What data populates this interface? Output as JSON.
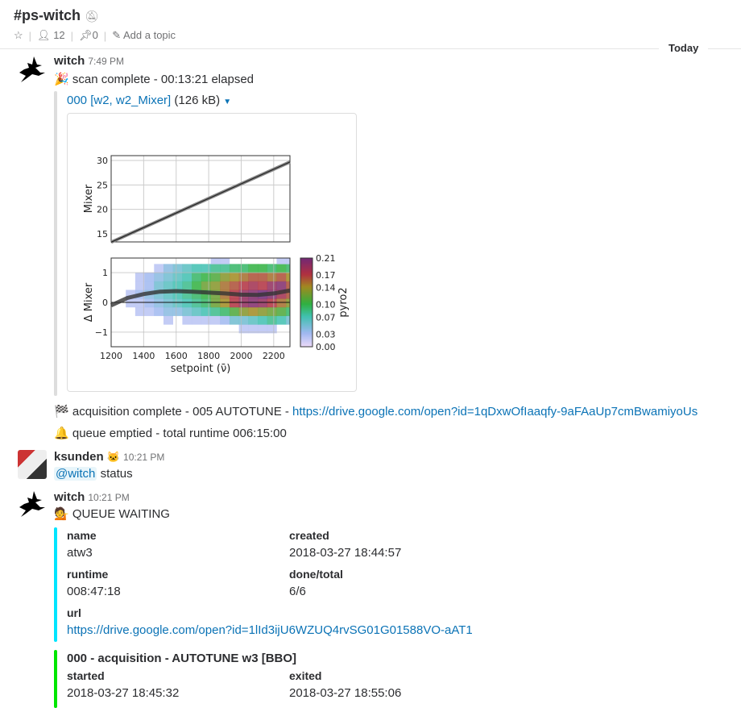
{
  "header": {
    "channel": "#ps-witch",
    "members": "12",
    "pins": "0",
    "topic": "Add a topic",
    "icons": [
      "bell-muted-icon",
      "star-icon",
      "person-icon",
      "pin-icon",
      "pencil-icon"
    ]
  },
  "divider": {
    "label": "Today"
  },
  "messages": [
    {
      "author": "witch",
      "time": "7:49 PM",
      "text": "scan complete - 00:13:21 elapsed",
      "emoji": "🎉",
      "file": {
        "name": "000 [w2, w2_Mixer]",
        "size": "(126 kB)"
      }
    },
    {
      "emoji": "🏁",
      "text": "acquisition complete - 005 AUTOTUNE - ",
      "link": "https://drive.google.com/open?id=1qDxwOfIaaqfy-9aFAaUp7cmBwamiyoUs"
    },
    {
      "emoji": "🔔",
      "text": "queue emptied - total runtime 006:15:00"
    },
    {
      "author": "ksunden",
      "time": "10:21 PM",
      "mention": "@witch",
      "text": "status"
    },
    {
      "author": "witch",
      "time": "10:21 PM",
      "emoji": "💁",
      "text": "QUEUE WAITING",
      "attachments": [
        {
          "color": "#00e5ff",
          "fields": [
            {
              "label": "name",
              "value": "atw3"
            },
            {
              "label": "created",
              "value": "2018-03-27 18:44:57"
            },
            {
              "label": "runtime",
              "value": "008:47:18"
            },
            {
              "label": "done/total",
              "value": "6/6"
            },
            {
              "label": "url",
              "value": "https://drive.google.com/open?id=1lId3ijU6WZUQ4rvSG01G01588VO-aAT1"
            }
          ]
        },
        {
          "color": "#00e600",
          "title": "000 - acquisition - AUTOTUNE w3 [BBO]",
          "fields": [
            {
              "label": "started",
              "value": "2018-03-27 18:45:32"
            },
            {
              "label": "exited",
              "value": "2018-03-27 18:55:06"
            }
          ]
        }
      ]
    }
  ],
  "chart_data": [
    {
      "type": "line",
      "ylabel": "Mixer",
      "xlim": [
        1200,
        2300
      ],
      "ylim": [
        13.35,
        31
      ],
      "yticks": [
        "15",
        "20",
        "25",
        "30"
      ],
      "grid": true,
      "x": [
        1200,
        2300
      ],
      "y": [
        13.3,
        29.7
      ]
    },
    {
      "type": "heatmap",
      "ylabel": "Δ Mixer",
      "xlabel": "setpoint (ν̄)",
      "xlim": [
        1200,
        2300
      ],
      "ylim": [
        -1.49,
        1.49
      ],
      "xticks": [
        "1200",
        "1400",
        "1600",
        "1800",
        "2000",
        "2200"
      ],
      "yticks": [
        "1",
        "0",
        "−1"
      ],
      "grid": true,
      "colorbar": {
        "label": "pyro2",
        "ticks": [
          "0.21",
          "0.17",
          "0.14",
          "0.10",
          "0.07",
          "0.03",
          "0.00"
        ],
        "range": [
          0,
          0.21
        ]
      },
      "x_bin_start": 1290,
      "x_bin_width": 58,
      "y_bin_edges": [
        -1.03,
        -0.74,
        -0.45,
        -0.16,
        0.13,
        0.42,
        0.71,
        1.0,
        1.29,
        1.58
      ],
      "values": [
        [
          null,
          null,
          null,
          null,
          null,
          null,
          null,
          null,
          null,
          null,
          null,
          null,
          0.02,
          0.02,
          0.02,
          0.02,
          null,
          null
        ],
        [
          null,
          null,
          null,
          null,
          0.02,
          null,
          0.02,
          0.02,
          0.02,
          0.02,
          0.03,
          0.05,
          0.05,
          0.06,
          0.07,
          0.08,
          0.07,
          0.05
        ],
        [
          null,
          0.02,
          0.02,
          0.03,
          0.04,
          0.04,
          0.05,
          0.06,
          0.07,
          0.08,
          0.09,
          0.11,
          0.13,
          0.14,
          0.13,
          0.12,
          0.11,
          0.09
        ],
        [
          0.02,
          0.02,
          0.03,
          0.04,
          0.05,
          0.06,
          0.07,
          0.08,
          0.09,
          0.12,
          0.14,
          0.17,
          0.19,
          0.2,
          0.19,
          0.17,
          0.15,
          0.13
        ],
        [
          0.02,
          0.03,
          0.04,
          0.05,
          0.06,
          0.07,
          0.08,
          0.09,
          0.1,
          0.12,
          0.15,
          0.17,
          0.19,
          0.2,
          0.21,
          0.2,
          0.18,
          0.16
        ],
        [
          null,
          0.02,
          0.03,
          0.05,
          0.06,
          0.07,
          0.08,
          0.1,
          0.12,
          0.13,
          0.15,
          0.16,
          0.17,
          0.18,
          0.17,
          0.19,
          0.2,
          0.16
        ],
        [
          null,
          0.02,
          0.03,
          0.04,
          0.05,
          0.06,
          0.07,
          0.09,
          0.1,
          0.11,
          0.13,
          0.14,
          0.15,
          0.16,
          0.16,
          0.15,
          0.16,
          0.14
        ],
        [
          null,
          null,
          null,
          0.02,
          0.04,
          0.05,
          0.06,
          0.07,
          0.07,
          0.08,
          0.08,
          0.09,
          0.09,
          0.1,
          0.1,
          0.09,
          0.1,
          0.09
        ],
        [
          null,
          null,
          null,
          null,
          null,
          null,
          null,
          null,
          null,
          0.02,
          0.02,
          null,
          null,
          null,
          null,
          null,
          0.02,
          0.02
        ]
      ],
      "line": {
        "x": [
          1200,
          1300,
          1400,
          1500,
          1600,
          1700,
          1800,
          1900,
          2000,
          2100,
          2200,
          2300
        ],
        "y": [
          -0.1,
          0.15,
          0.28,
          0.36,
          0.38,
          0.36,
          0.33,
          0.3,
          0.26,
          0.25,
          0.3,
          0.4
        ]
      }
    }
  ]
}
